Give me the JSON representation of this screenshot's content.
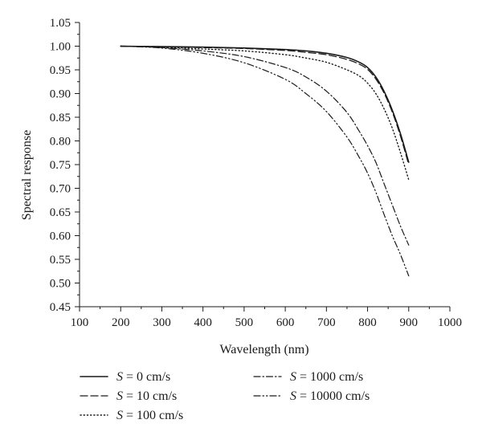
{
  "chart_data": {
    "type": "line",
    "title": "",
    "xlabel": "Wavelength (nm)",
    "ylabel": "Spectral response",
    "xlim": [
      100,
      1000
    ],
    "ylim": [
      0.45,
      1.05
    ],
    "xticks": [
      "100",
      "200",
      "300",
      "400",
      "500",
      "600",
      "700",
      "800",
      "900",
      "1000"
    ],
    "yticks": [
      "0.45",
      "0.50",
      "0.55",
      "0.60",
      "0.65",
      "0.70",
      "0.75",
      "0.80",
      "0.85",
      "0.90",
      "0.95",
      "1.00",
      "1.05"
    ],
    "grid": false,
    "legend_position": "bottom",
    "series": [
      {
        "name": "S = 0 cm/s",
        "symbol": "S",
        "value_label": " = 0 cm/s",
        "dash": "solid",
        "x": [
          200,
          300,
          400,
          500,
          600,
          650,
          700,
          750,
          780,
          800,
          820,
          840,
          860,
          880,
          900
        ],
        "y": [
          1.0,
          0.999,
          0.998,
          0.996,
          0.993,
          0.99,
          0.985,
          0.976,
          0.966,
          0.955,
          0.935,
          0.905,
          0.865,
          0.815,
          0.755
        ]
      },
      {
        "name": "S = 10 cm/s",
        "symbol": "S",
        "value_label": " = 10 cm/s",
        "dash": "dashed",
        "x": [
          200,
          300,
          400,
          500,
          600,
          650,
          700,
          750,
          780,
          800,
          820,
          840,
          860,
          880,
          900
        ],
        "y": [
          1.0,
          0.999,
          0.997,
          0.995,
          0.991,
          0.987,
          0.982,
          0.972,
          0.962,
          0.951,
          0.931,
          0.901,
          0.861,
          0.81,
          0.75
        ]
      },
      {
        "name": "S = 100 cm/s",
        "symbol": "S",
        "value_label": " = 100 cm/s",
        "dash": "dotted",
        "x": [
          200,
          300,
          400,
          500,
          600,
          650,
          700,
          750,
          780,
          800,
          820,
          840,
          860,
          880,
          900
        ],
        "y": [
          1.0,
          0.998,
          0.994,
          0.99,
          0.982,
          0.975,
          0.966,
          0.95,
          0.937,
          0.922,
          0.9,
          0.868,
          0.827,
          0.775,
          0.718
        ]
      },
      {
        "name": "S = 1000 cm/s",
        "symbol": "S",
        "value_label": " = 1000 cm/s",
        "dash": "dashdot",
        "x": [
          200,
          300,
          400,
          500,
          600,
          650,
          700,
          750,
          780,
          800,
          820,
          840,
          860,
          880,
          900
        ],
        "y": [
          1.0,
          0.997,
          0.99,
          0.978,
          0.955,
          0.935,
          0.905,
          0.86,
          0.82,
          0.79,
          0.755,
          0.71,
          0.665,
          0.62,
          0.58
        ]
      },
      {
        "name": "S = 10000 cm/s",
        "symbol": "S",
        "value_label": " = 10000 cm/s",
        "dash": "dashdotdot",
        "x": [
          200,
          300,
          400,
          500,
          600,
          650,
          700,
          750,
          780,
          800,
          820,
          840,
          860,
          880,
          900
        ],
        "y": [
          1.0,
          0.996,
          0.985,
          0.965,
          0.93,
          0.9,
          0.862,
          0.808,
          0.765,
          0.732,
          0.692,
          0.645,
          0.6,
          0.56,
          0.515
        ]
      }
    ]
  }
}
